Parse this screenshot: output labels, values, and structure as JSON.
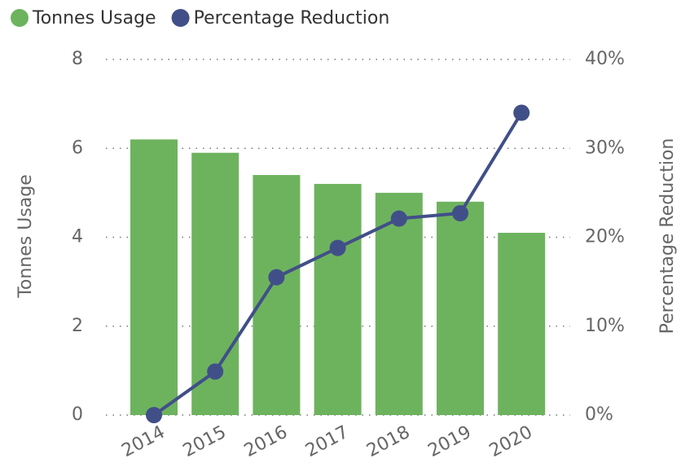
{
  "chart_data": {
    "type": "bar_line",
    "categories": [
      "2014",
      "2015",
      "2016",
      "2017",
      "2018",
      "2019",
      "2020"
    ],
    "series": [
      {
        "name": "Tonnes Usage",
        "color": "#6db35e",
        "type": "bar",
        "values": [
          6.2,
          5.9,
          5.4,
          5.2,
          5.0,
          4.8,
          4.1
        ]
      },
      {
        "name": "Percentage Reduction",
        "color": "#414f88",
        "type": "line",
        "axis": "y2",
        "values": [
          0,
          4.9,
          15.5,
          18.8,
          22.1,
          22.7,
          34.0
        ]
      }
    ],
    "ylabel": "Tonnes Usage",
    "y2label": "Percentage Reduction",
    "ylim": [
      0,
      8
    ],
    "yticks": [
      0,
      2,
      4,
      6,
      8
    ],
    "y2lim": [
      0,
      40
    ],
    "y2ticks": [
      {
        "value": 0,
        "label": "0%"
      },
      {
        "value": 10,
        "label": "10%"
      },
      {
        "value": 20,
        "label": "20%"
      },
      {
        "value": 30,
        "label": "30%"
      },
      {
        "value": 40,
        "label": "40%"
      }
    ],
    "grid": true,
    "legend": "top-left"
  }
}
